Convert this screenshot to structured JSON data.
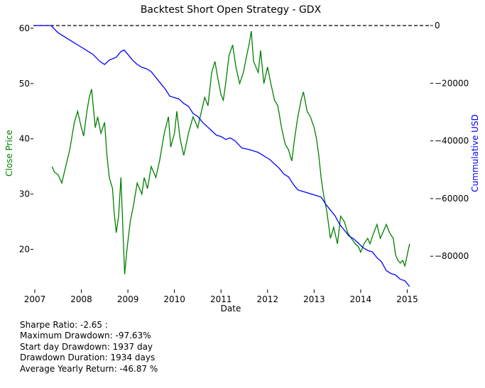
{
  "chart_data": {
    "type": "line",
    "title": "Backtest Short Open Strategy - GDX",
    "xlabel": "Date",
    "ylabel_left": "Close Price",
    "ylabel_right": "Cummulative USD",
    "xlim": [
      2007.0,
      2015.45
    ],
    "ylim_left": [
      12.5,
      60.5
    ],
    "ylim_right": [
      -92000,
      0
    ],
    "x_ticks": [
      2007,
      2008,
      2009,
      2010,
      2011,
      2012,
      2013,
      2014,
      2015
    ],
    "y_ticks_left": [
      20,
      30,
      40,
      50,
      60
    ],
    "y_ticks_right": [
      0,
      -20000,
      -40000,
      -60000,
      -80000
    ],
    "y_tick_labels_right": [
      "0",
      "−20000",
      "−40000",
      "−60000",
      "−80000"
    ],
    "reference_line": {
      "axis": "right",
      "value": 0,
      "style": "dashed",
      "color": "#000000"
    },
    "grid": false,
    "series": [
      {
        "axis": "left",
        "color": "#008000",
        "x": [
          2007.37,
          2007.42,
          2007.5,
          2007.58,
          2007.65,
          2007.75,
          2007.85,
          2007.92,
          2008.0,
          2008.05,
          2008.12,
          2008.17,
          2008.22,
          2008.3,
          2008.35,
          2008.42,
          2008.5,
          2008.55,
          2008.6,
          2008.67,
          2008.7,
          2008.75,
          2008.8,
          2008.85,
          2008.9,
          2008.93,
          2008.98,
          2009.05,
          2009.12,
          2009.2,
          2009.3,
          2009.35,
          2009.42,
          2009.5,
          2009.6,
          2009.68,
          2009.78,
          2009.87,
          2009.92,
          2010.0,
          2010.05,
          2010.12,
          2010.2,
          2010.3,
          2010.4,
          2010.5,
          2010.58,
          2010.65,
          2010.72,
          2010.8,
          2010.87,
          2010.93,
          2011.0,
          2011.05,
          2011.1,
          2011.17,
          2011.25,
          2011.32,
          2011.4,
          2011.48,
          2011.55,
          2011.6,
          2011.65,
          2011.7,
          2011.75,
          2011.8,
          2011.85,
          2011.92,
          2012.0,
          2012.07,
          2012.15,
          2012.22,
          2012.3,
          2012.38,
          2012.45,
          2012.52,
          2012.58,
          2012.65,
          2012.72,
          2012.77,
          2012.85,
          2012.92,
          2013.0,
          2013.05,
          2013.1,
          2013.15,
          2013.2,
          2013.27,
          2013.35,
          2013.42,
          2013.5,
          2013.57,
          2013.65,
          2013.72,
          2013.8,
          2013.88,
          2013.95,
          2014.0,
          2014.07,
          2014.15,
          2014.2,
          2014.28,
          2014.35,
          2014.42,
          2014.5,
          2014.55,
          2014.62,
          2014.7,
          2014.75,
          2014.8,
          2014.85,
          2014.9,
          2014.95,
          2015.0,
          2015.05
        ],
        "values": [
          35,
          34,
          33.5,
          32,
          34.5,
          38,
          43,
          45,
          42,
          40.5,
          45,
          47.5,
          49,
          42,
          44,
          41,
          43,
          37,
          33,
          31,
          27,
          23,
          26,
          33,
          22,
          15.5,
          20,
          25,
          28,
          32,
          30,
          33,
          31,
          35,
          33,
          36,
          41,
          44,
          38.5,
          41,
          45,
          40,
          37,
          41,
          44,
          42,
          45,
          47.5,
          46,
          52,
          54,
          51,
          48,
          47,
          50,
          55,
          57,
          53,
          50,
          52,
          55,
          57,
          59.5,
          54,
          53,
          52,
          56,
          50,
          53,
          50,
          47,
          46,
          42,
          39,
          38,
          36,
          40,
          44,
          47,
          48.5,
          45,
          44,
          42,
          40,
          37,
          33,
          30,
          27,
          22,
          24,
          21,
          26,
          25,
          23,
          22,
          21,
          20.5,
          19.5,
          21,
          22,
          21,
          23,
          24.5,
          22,
          23.5,
          24.5,
          23,
          22,
          19,
          18,
          17.5,
          18,
          17,
          19,
          21
        ]
      },
      {
        "axis": "right",
        "color": "#0000ff",
        "x": [
          2007.0,
          2007.35,
          2007.5,
          2007.65,
          2007.8,
          2007.95,
          2008.1,
          2008.25,
          2008.4,
          2008.5,
          2008.6,
          2008.75,
          2008.85,
          2008.92,
          2009.0,
          2009.1,
          2009.2,
          2009.3,
          2009.4,
          2009.5,
          2009.6,
          2009.7,
          2009.8,
          2009.9,
          2010.0,
          2010.1,
          2010.2,
          2010.3,
          2010.4,
          2010.5,
          2010.6,
          2010.7,
          2010.8,
          2010.9,
          2011.0,
          2011.1,
          2011.2,
          2011.3,
          2011.45,
          2011.6,
          2011.7,
          2011.8,
          2011.95,
          2012.05,
          2012.15,
          2012.25,
          2012.35,
          2012.45,
          2012.55,
          2012.65,
          2012.75,
          2012.85,
          2012.95,
          2013.05,
          2013.15,
          2013.25,
          2013.35,
          2013.45,
          2013.55,
          2013.65,
          2013.75,
          2013.85,
          2013.95,
          2014.05,
          2014.15,
          2014.25,
          2014.35,
          2014.45,
          2014.55,
          2014.65,
          2014.75,
          2014.85,
          2014.95,
          2015.05
        ],
        "values": [
          0,
          0,
          -2500,
          -4000,
          -5500,
          -7000,
          -8500,
          -10000,
          -12500,
          -13500,
          -12000,
          -11000,
          -9000,
          -8500,
          -10000,
          -12000,
          -13500,
          -14500,
          -15000,
          -16000,
          -18000,
          -20000,
          -22000,
          -24500,
          -25000,
          -25500,
          -27000,
          -28000,
          -30500,
          -31500,
          -33500,
          -35000,
          -36500,
          -38000,
          -38500,
          -39500,
          -39000,
          -40000,
          -42500,
          -43000,
          -43500,
          -44000,
          -45500,
          -46500,
          -48000,
          -49500,
          -51500,
          -52500,
          -55000,
          -57000,
          -57500,
          -58000,
          -58500,
          -59000,
          -59500,
          -62000,
          -64000,
          -66000,
          -69000,
          -71000,
          -73000,
          -74000,
          -75500,
          -77000,
          -78000,
          -78500,
          -80500,
          -82000,
          -85000,
          -86000,
          -86500,
          -88000,
          -88500,
          -90500
        ]
      }
    ]
  },
  "stats": {
    "sharpe": "Sharpe Ratio: -2.65 :",
    "max_drawdown": "Maximum Drawdown: -97.63%",
    "start_day_drawdown": "Start day Drawdown: 1937 day",
    "drawdown_duration": "Drawdown Duration: 1934 days",
    "avg_yearly_return": "Average Yearly Return: -46.87 %"
  }
}
